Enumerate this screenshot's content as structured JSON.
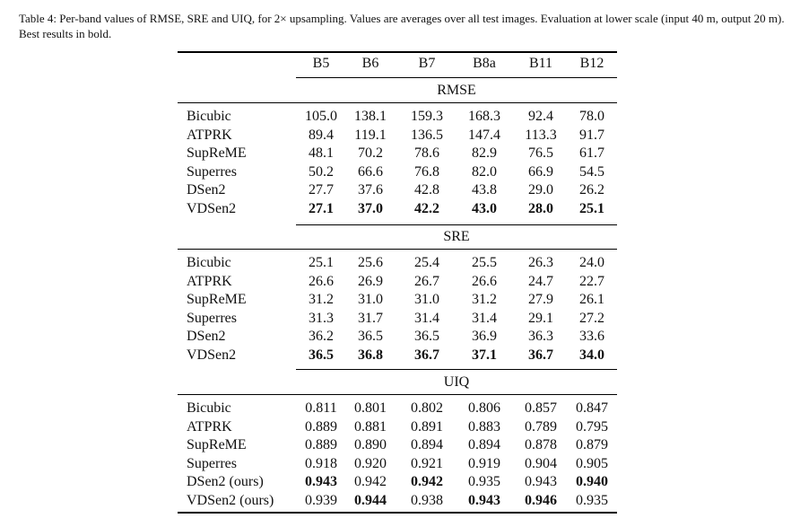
{
  "caption": "Table 4: Per-band values of RMSE, SRE and UIQ, for 2× upsampling. Values are averages over all test images. Evaluation at lower scale (input 40 m, output 20 m). Best results in bold.",
  "columns": [
    "B5",
    "B6",
    "B7",
    "B8a",
    "B11",
    "B12"
  ],
  "sections": [
    {
      "title": "RMSE",
      "rows": [
        {
          "method": "Bicubic",
          "values": [
            "105.0",
            "138.1",
            "159.3",
            "168.3",
            "92.4",
            "78.0"
          ],
          "bold": [
            false,
            false,
            false,
            false,
            false,
            false
          ]
        },
        {
          "method": "ATPRK",
          "values": [
            "89.4",
            "119.1",
            "136.5",
            "147.4",
            "113.3",
            "91.7"
          ],
          "bold": [
            false,
            false,
            false,
            false,
            false,
            false
          ]
        },
        {
          "method": "SupReME",
          "values": [
            "48.1",
            "70.2",
            "78.6",
            "82.9",
            "76.5",
            "61.7"
          ],
          "bold": [
            false,
            false,
            false,
            false,
            false,
            false
          ]
        },
        {
          "method": "Superres",
          "values": [
            "50.2",
            "66.6",
            "76.8",
            "82.0",
            "66.9",
            "54.5"
          ],
          "bold": [
            false,
            false,
            false,
            false,
            false,
            false
          ]
        },
        {
          "method": "DSen2",
          "values": [
            "27.7",
            "37.6",
            "42.8",
            "43.8",
            "29.0",
            "26.2"
          ],
          "bold": [
            false,
            false,
            false,
            false,
            false,
            false
          ]
        },
        {
          "method": "VDSen2",
          "values": [
            "27.1",
            "37.0",
            "42.2",
            "43.0",
            "28.0",
            "25.1"
          ],
          "bold": [
            true,
            true,
            true,
            true,
            true,
            true
          ]
        }
      ]
    },
    {
      "title": "SRE",
      "rows": [
        {
          "method": "Bicubic",
          "values": [
            "25.1",
            "25.6",
            "25.4",
            "25.5",
            "26.3",
            "24.0"
          ],
          "bold": [
            false,
            false,
            false,
            false,
            false,
            false
          ]
        },
        {
          "method": "ATPRK",
          "values": [
            "26.6",
            "26.9",
            "26.7",
            "26.6",
            "24.7",
            "22.7"
          ],
          "bold": [
            false,
            false,
            false,
            false,
            false,
            false
          ]
        },
        {
          "method": "SupReME",
          "values": [
            "31.2",
            "31.0",
            "31.0",
            "31.2",
            "27.9",
            "26.1"
          ],
          "bold": [
            false,
            false,
            false,
            false,
            false,
            false
          ]
        },
        {
          "method": "Superres",
          "values": [
            "31.3",
            "31.7",
            "31.4",
            "31.4",
            "29.1",
            "27.2"
          ],
          "bold": [
            false,
            false,
            false,
            false,
            false,
            false
          ]
        },
        {
          "method": "DSen2",
          "values": [
            "36.2",
            "36.5",
            "36.5",
            "36.9",
            "36.3",
            "33.6"
          ],
          "bold": [
            false,
            false,
            false,
            false,
            false,
            false
          ]
        },
        {
          "method": "VDSen2",
          "values": [
            "36.5",
            "36.8",
            "36.7",
            "37.1",
            "36.7",
            "34.0"
          ],
          "bold": [
            true,
            true,
            true,
            true,
            true,
            true
          ]
        }
      ]
    },
    {
      "title": "UIQ",
      "rows": [
        {
          "method": "Bicubic",
          "values": [
            "0.811",
            "0.801",
            "0.802",
            "0.806",
            "0.857",
            "0.847"
          ],
          "bold": [
            false,
            false,
            false,
            false,
            false,
            false
          ]
        },
        {
          "method": "ATPRK",
          "values": [
            "0.889",
            "0.881",
            "0.891",
            "0.883",
            "0.789",
            "0.795"
          ],
          "bold": [
            false,
            false,
            false,
            false,
            false,
            false
          ]
        },
        {
          "method": "SupReME",
          "values": [
            "0.889",
            "0.890",
            "0.894",
            "0.894",
            "0.878",
            "0.879"
          ],
          "bold": [
            false,
            false,
            false,
            false,
            false,
            false
          ]
        },
        {
          "method": "Superres",
          "values": [
            "0.918",
            "0.920",
            "0.921",
            "0.919",
            "0.904",
            "0.905"
          ],
          "bold": [
            false,
            false,
            false,
            false,
            false,
            false
          ]
        },
        {
          "method": "DSen2 (ours)",
          "values": [
            "0.943",
            "0.942",
            "0.942",
            "0.935",
            "0.943",
            "0.940"
          ],
          "bold": [
            true,
            false,
            true,
            false,
            false,
            true
          ]
        },
        {
          "method": "VDSen2 (ours)",
          "values": [
            "0.939",
            "0.944",
            "0.938",
            "0.943",
            "0.946",
            "0.935"
          ],
          "bold": [
            false,
            true,
            false,
            true,
            true,
            false
          ]
        }
      ]
    }
  ]
}
